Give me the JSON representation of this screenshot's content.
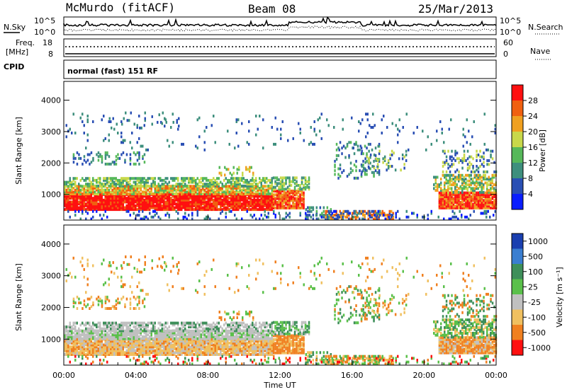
{
  "header": {
    "station": "McMurdo (fitACF)",
    "beam": "Beam 08",
    "date": "25/Mar/2013"
  },
  "noise_panel": {
    "left_label": "N.Sky",
    "right_label": "N.Search",
    "left_ticks": [
      "10^5",
      "10^0"
    ],
    "right_ticks": [
      "10^5",
      "10^0"
    ]
  },
  "freq_panel": {
    "left_label_1": "Freq.",
    "left_label_2": "[MHz]",
    "right_label": "Nave",
    "left_ticks": [
      "18",
      "8"
    ],
    "right_ticks": [
      "60",
      "0"
    ]
  },
  "cpid": {
    "label": "CPID",
    "mode": "normal (fast) 151 RF"
  },
  "chart_data": [
    {
      "type": "heatmap",
      "name": "power",
      "ylabel": "Slant Range [km]",
      "y_ticks": [
        "1000",
        "2000",
        "3000",
        "4000"
      ],
      "ylim": [
        180,
        4600
      ],
      "xlim": [
        0,
        24
      ],
      "colorbar_label": "Power [dB]",
      "colorbar_ticks": [
        "4",
        "8",
        "12",
        "16",
        "20",
        "24",
        "28"
      ],
      "colors": [
        "#0a1eff",
        "#2a4fb4",
        "#3e8f7d",
        "#56b85a",
        "#c8d84a",
        "#f0a020",
        "#f06010",
        "#ff1010"
      ]
    },
    {
      "type": "heatmap",
      "name": "velocity",
      "ylabel": "Slant Range [km]",
      "y_ticks": [
        "1000",
        "2000",
        "3000",
        "4000"
      ],
      "ylim": [
        180,
        4600
      ],
      "xlim": [
        0,
        24
      ],
      "xlabel": "Time UT",
      "x_ticks": [
        "00:00",
        "04:00",
        "08:00",
        "12:00",
        "16:00",
        "20:00",
        "00:00"
      ],
      "colorbar_label": "Velocity [m s⁻¹]",
      "colorbar_ticks": [
        "1000",
        "500",
        "100",
        "25",
        "-25",
        "-100",
        "-500",
        "-1000"
      ],
      "colors": [
        "#1a3fb0",
        "#3a7ed0",
        "#3e8f5a",
        "#5ac04a",
        "#c0c0c0",
        "#f0c060",
        "#f08020",
        "#ff1010"
      ]
    }
  ]
}
